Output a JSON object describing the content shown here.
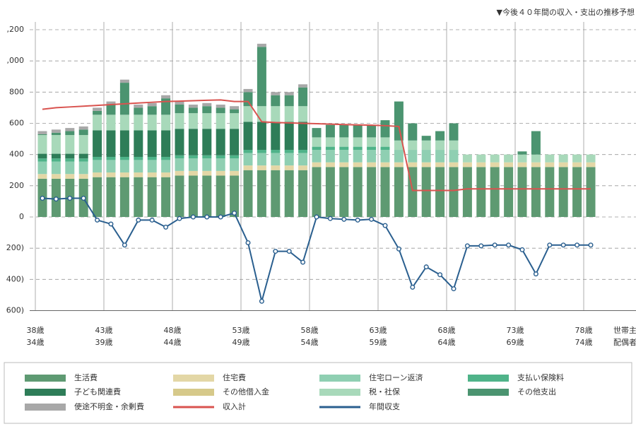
{
  "chart_data": {
    "type": "bar",
    "title": "▼今後４０年間の収入・支出の推移予想",
    "categories": [
      "38歳",
      null,
      null,
      null,
      null,
      "43歳",
      null,
      null,
      null,
      null,
      "48歳",
      null,
      null,
      null,
      null,
      "53歳",
      null,
      null,
      null,
      null,
      "58歳",
      null,
      null,
      null,
      null,
      "63歳",
      null,
      null,
      null,
      null,
      "68歳",
      null,
      null,
      null,
      null,
      "73歳",
      null,
      null,
      null,
      null,
      "78歳"
    ],
    "spouse_ages": [
      "34歳",
      null,
      null,
      null,
      null,
      "39歳",
      null,
      null,
      null,
      null,
      "44歳",
      null,
      null,
      null,
      null,
      "49歳",
      null,
      null,
      null,
      null,
      "54歳",
      null,
      null,
      null,
      null,
      "59歳",
      null,
      null,
      null,
      null,
      "64歳",
      null,
      null,
      null,
      null,
      "69歳",
      null,
      null,
      null,
      null,
      "74歳"
    ],
    "row_labels": [
      "世帯主",
      "配偶者"
    ],
    "ylim": [
      -600,
      1250
    ],
    "yticks": [
      {
        "value": 1200,
        "label": ",200"
      },
      {
        "value": 1000,
        "label": ",000"
      },
      800,
      600,
      400,
      200,
      0,
      {
        "value": -200,
        "label": "200)"
      },
      {
        "value": -400,
        "label": "400)"
      },
      {
        "value": -600,
        "label": "600)"
      }
    ],
    "grid": true,
    "series": [
      {
        "name": "生活費",
        "color": "#5e9a72",
        "values": [
          245,
          245,
          245,
          245,
          255,
          255,
          255,
          255,
          255,
          255,
          265,
          265,
          265,
          265,
          265,
          300,
          300,
          300,
          300,
          300,
          320,
          320,
          320,
          320,
          320,
          320,
          320,
          320,
          320,
          320,
          320,
          320,
          320,
          320,
          320,
          320,
          320,
          320,
          320,
          320,
          320
        ]
      },
      {
        "name": "住宅費",
        "color": "#e3d7a6",
        "values": [
          30,
          30,
          30,
          30,
          30,
          30,
          30,
          30,
          30,
          30,
          30,
          30,
          30,
          30,
          30,
          30,
          30,
          30,
          30,
          30,
          30,
          30,
          30,
          30,
          30,
          30,
          30,
          30,
          30,
          30,
          30,
          30,
          30,
          30,
          30,
          30,
          30,
          30,
          30,
          30,
          30
        ]
      },
      {
        "name": "住宅ローン返済",
        "color": "#8fcfb2",
        "values": [
          80,
          80,
          80,
          80,
          80,
          80,
          80,
          80,
          80,
          80,
          80,
          80,
          80,
          80,
          80,
          80,
          80,
          80,
          80,
          80,
          80,
          80,
          80,
          80,
          80,
          80,
          80,
          80,
          80,
          80,
          80,
          0,
          0,
          0,
          0,
          0,
          0,
          0,
          0,
          0,
          0
        ]
      },
      {
        "name": "支払い保険料",
        "color": "#4fb389",
        "values": [
          20,
          20,
          20,
          20,
          20,
          20,
          20,
          20,
          20,
          20,
          20,
          20,
          20,
          20,
          20,
          20,
          20,
          20,
          20,
          20,
          20,
          20,
          20,
          20,
          20,
          20,
          0,
          0,
          0,
          0,
          0,
          0,
          0,
          0,
          0,
          0,
          0,
          0,
          0,
          0,
          0
        ]
      },
      {
        "name": "子ども関連費",
        "color": "#2e7d58",
        "values": [
          30,
          30,
          30,
          30,
          170,
          170,
          170,
          170,
          170,
          170,
          170,
          170,
          170,
          170,
          170,
          180,
          180,
          180,
          180,
          180,
          0,
          0,
          0,
          0,
          0,
          0,
          0,
          0,
          0,
          0,
          0,
          0,
          0,
          0,
          0,
          0,
          0,
          0,
          0,
          0,
          0
        ]
      },
      {
        "name": "その他借入金",
        "color": "#d6c98a",
        "values": [
          0,
          0,
          0,
          0,
          0,
          0,
          0,
          0,
          0,
          0,
          0,
          0,
          0,
          0,
          0,
          0,
          0,
          0,
          0,
          0,
          0,
          0,
          0,
          0,
          0,
          0,
          0,
          0,
          0,
          0,
          0,
          0,
          0,
          0,
          0,
          0,
          0,
          0,
          0,
          0,
          0
        ]
      },
      {
        "name": "税・社保",
        "color": "#a8d9ba",
        "values": [
          120,
          120,
          120,
          120,
          100,
          100,
          100,
          100,
          100,
          100,
          100,
          100,
          100,
          100,
          100,
          100,
          100,
          100,
          100,
          100,
          60,
          60,
          60,
          60,
          60,
          60,
          60,
          60,
          60,
          60,
          60,
          50,
          50,
          50,
          50,
          50,
          50,
          50,
          50,
          50,
          50
        ]
      },
      {
        "name": "その他支出",
        "color": "#4b9470",
        "values": [
          5,
          15,
          25,
          35,
          25,
          65,
          205,
          45,
          55,
          105,
          55,
          35,
          45,
          35,
          25,
          90,
          380,
          70,
          70,
          120,
          60,
          80,
          80,
          80,
          80,
          110,
          250,
          110,
          30,
          60,
          110,
          0,
          0,
          0,
          0,
          20,
          150,
          0,
          0,
          0,
          0
        ]
      },
      {
        "name": "使途不明金・余剰費",
        "color": "#a8a8a8",
        "values": [
          20,
          20,
          20,
          20,
          20,
          20,
          20,
          20,
          20,
          20,
          20,
          20,
          20,
          20,
          20,
          20,
          20,
          20,
          20,
          20,
          0,
          0,
          0,
          0,
          0,
          0,
          0,
          0,
          0,
          0,
          0,
          0,
          0,
          0,
          0,
          0,
          0,
          0,
          0,
          0,
          0
        ]
      },
      {
        "name": "収入計",
        "type": "line",
        "color": "#d9534f",
        "values": [
          690,
          700,
          705,
          710,
          715,
          720,
          725,
          730,
          735,
          740,
          742,
          745,
          748,
          750,
          740,
          740,
          610,
          605,
          603,
          600,
          598,
          595,
          592,
          590,
          588,
          585,
          580,
          170,
          170,
          170,
          170,
          180,
          180,
          180,
          180,
          180,
          180,
          180,
          180,
          180,
          180
        ]
      },
      {
        "name": "年間収支",
        "type": "line",
        "color": "#2a5f8f",
        "values": [
          120,
          115,
          120,
          120,
          -20,
          -45,
          -180,
          -20,
          -20,
          -65,
          -10,
          0,
          0,
          0,
          25,
          -165,
          -540,
          -220,
          -220,
          -290,
          0,
          -10,
          -15,
          -20,
          -15,
          -55,
          -205,
          -450,
          -320,
          -370,
          -460,
          -185,
          -185,
          -180,
          -180,
          -210,
          -365,
          -180,
          -180,
          -180,
          -180
        ]
      }
    ]
  }
}
